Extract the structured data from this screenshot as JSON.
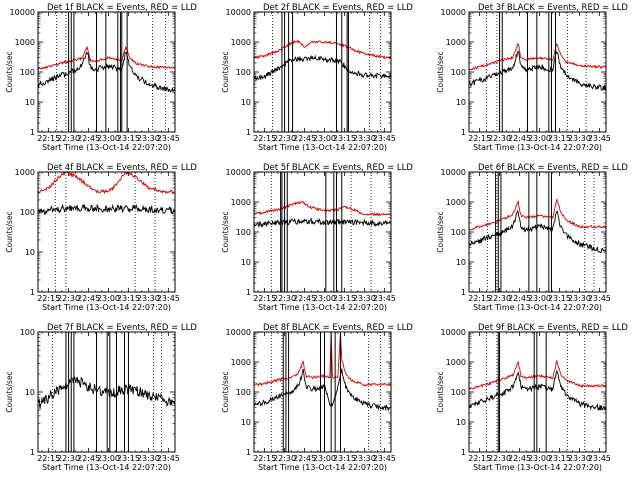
{
  "figure": {
    "background": "#ffffff",
    "colors": {
      "events": "#000000",
      "lld": "#e00000",
      "markers": "#000000"
    }
  },
  "chart_data": [
    {
      "id": "det1f",
      "type": "line",
      "title": "Det 1f BLACK = Events, RED = LLD",
      "xlabel": "Start Time (13-Oct-14 22:07:20)",
      "ylabel": "Counts/sec",
      "yscale": "log",
      "ylim": [
        1,
        10000
      ],
      "yticks": [
        "1",
        "10",
        "100",
        "1000",
        "10000"
      ],
      "xlim": [
        "22:07",
        "23:50"
      ],
      "xticks": [
        "22:15",
        "22:30",
        "22:45",
        "23:00",
        "23:15",
        "23:30",
        "23:45"
      ],
      "grid": false,
      "legend": "none",
      "series": [
        {
          "name": "LLD",
          "color": "#e00000",
          "x": [
            "22:07",
            "22:15",
            "22:25",
            "22:35",
            "22:40",
            "22:44",
            "22:46",
            "22:50",
            "23:00",
            "23:10",
            "23:13",
            "23:16",
            "23:20",
            "23:30",
            "23:45"
          ],
          "values": [
            130,
            150,
            200,
            260,
            280,
            700,
            250,
            230,
            300,
            240,
            700,
            300,
            200,
            150,
            140
          ]
        },
        {
          "name": "Events",
          "color": "#000000",
          "x": [
            "22:07",
            "22:15",
            "22:25",
            "22:35",
            "22:40",
            "22:44",
            "22:46",
            "22:50",
            "23:00",
            "23:10",
            "23:13",
            "23:16",
            "23:20",
            "23:30",
            "23:45"
          ],
          "values": [
            40,
            50,
            80,
            110,
            160,
            500,
            150,
            120,
            160,
            120,
            500,
            150,
            80,
            40,
            25
          ]
        }
      ],
      "markers": {
        "solid": [
          "22:30",
          "22:32",
          "22:34",
          "22:51",
          "22:58",
          "23:07",
          "23:09",
          "23:10",
          "23:14"
        ],
        "dotted": [
          "22:21",
          "22:28",
          "23:33",
          "23:43"
        ]
      }
    },
    {
      "id": "det2f",
      "type": "line",
      "title": "Det 2f BLACK = Events, RED = LLD",
      "xlabel": "Start Time (13-Oct-14 22:07:20)",
      "ylabel": "Counts/sec",
      "yscale": "log",
      "ylim": [
        1,
        10000
      ],
      "yticks": [
        "1",
        "10",
        "100",
        "1000",
        "10000"
      ],
      "xlim": [
        "22:07",
        "23:50"
      ],
      "xticks": [
        "22:15",
        "22:30",
        "22:45",
        "23:00",
        "23:15",
        "23:30",
        "23:45"
      ],
      "grid": false,
      "legend": "none",
      "series": [
        {
          "name": "LLD",
          "color": "#e00000",
          "x": [
            "22:07",
            "22:15",
            "22:25",
            "22:35",
            "22:40",
            "22:45",
            "22:50",
            "23:00",
            "23:10",
            "23:20",
            "23:30",
            "23:45"
          ],
          "values": [
            300,
            350,
            500,
            900,
            1100,
            700,
            1000,
            1000,
            900,
            600,
            400,
            300
          ]
        },
        {
          "name": "Events",
          "color": "#000000",
          "x": [
            "22:07",
            "22:15",
            "22:25",
            "22:35",
            "22:40",
            "22:45",
            "22:50",
            "23:00",
            "23:10",
            "23:20",
            "23:30",
            "23:45"
          ],
          "values": [
            60,
            70,
            130,
            250,
            280,
            260,
            280,
            270,
            250,
            100,
            80,
            70
          ]
        }
      ],
      "markers": {
        "solid": [
          "22:28",
          "22:30",
          "22:33",
          "22:36",
          "23:09",
          "23:13",
          "23:17",
          "23:18"
        ],
        "dotted": [
          "22:21",
          "23:34",
          "23:42"
        ]
      }
    },
    {
      "id": "det3f",
      "type": "line",
      "title": "Det 3f BLACK = Events, RED = LLD",
      "xlabel": "Start Time (13-Oct-14 22:07:20)",
      "ylabel": "Counts/sec",
      "yscale": "log",
      "ylim": [
        1,
        10000
      ],
      "yticks": [
        "1",
        "10",
        "100",
        "1000",
        "10000"
      ],
      "xlim": [
        "22:07",
        "23:50"
      ],
      "xticks": [
        "22:15",
        "22:30",
        "22:45",
        "23:00",
        "23:15",
        "23:30",
        "23:45"
      ],
      "grid": false,
      "legend": "none",
      "series": [
        {
          "name": "LLD",
          "color": "#e00000",
          "x": [
            "22:07",
            "22:15",
            "22:25",
            "22:35",
            "22:40",
            "22:44",
            "22:46",
            "22:50",
            "23:00",
            "23:10",
            "23:13",
            "23:16",
            "23:20",
            "23:30",
            "23:45"
          ],
          "values": [
            120,
            150,
            200,
            270,
            300,
            900,
            300,
            260,
            300,
            250,
            900,
            350,
            220,
            160,
            150
          ]
        },
        {
          "name": "Events",
          "color": "#000000",
          "x": [
            "22:07",
            "22:15",
            "22:25",
            "22:35",
            "22:40",
            "22:44",
            "22:46",
            "22:50",
            "23:00",
            "23:10",
            "23:13",
            "23:16",
            "23:20",
            "23:30",
            "23:45"
          ],
          "values": [
            40,
            50,
            80,
            110,
            150,
            500,
            150,
            120,
            150,
            120,
            500,
            150,
            80,
            40,
            30
          ]
        }
      ],
      "markers": {
        "solid": [
          "22:30",
          "22:32",
          "22:51",
          "22:58",
          "23:07",
          "23:09",
          "23:12"
        ],
        "dotted": [
          "22:20",
          "22:28",
          "23:21",
          "23:35"
        ]
      }
    },
    {
      "id": "det4f",
      "type": "line",
      "title": "Det 4f BLACK = Events, RED = LLD",
      "xlabel": "Start Time (13-Oct-14 22:07:20)",
      "ylabel": "Counts/sec",
      "yscale": "log",
      "ylim": [
        1,
        1000
      ],
      "yticks": [
        "1",
        "10",
        "100",
        "1000"
      ],
      "xlim": [
        "22:07",
        "23:50"
      ],
      "xticks": [
        "22:15",
        "22:30",
        "22:45",
        "23:00",
        "23:15",
        "23:30",
        "23:45"
      ],
      "grid": false,
      "legend": "none",
      "series": [
        {
          "name": "LLD",
          "color": "#e00000",
          "x": [
            "22:07",
            "22:15",
            "22:22",
            "22:28",
            "22:35",
            "22:43",
            "22:50",
            "23:00",
            "23:05",
            "23:12",
            "23:15",
            "23:23",
            "23:30",
            "23:40",
            "23:45"
          ],
          "values": [
            300,
            400,
            700,
            1000,
            800,
            500,
            330,
            320,
            450,
            900,
            1000,
            650,
            400,
            330,
            320
          ]
        },
        {
          "name": "Events",
          "color": "#000000",
          "x": [
            "22:07",
            "22:15",
            "22:25",
            "22:35",
            "22:45",
            "22:55",
            "23:05",
            "23:15",
            "23:25",
            "23:35",
            "23:45"
          ],
          "values": [
            100,
            110,
            120,
            130,
            125,
            120,
            120,
            125,
            120,
            115,
            110
          ]
        }
      ],
      "markers": {
        "solid": [],
        "dotted": [
          "22:20",
          "22:28",
          "23:20",
          "23:35"
        ]
      }
    },
    {
      "id": "det5f",
      "type": "line",
      "title": "Det 5f BLACK = Events, RED = LLD",
      "xlabel": "Start Time (13-Oct-14 22:07:20)",
      "ylabel": "Counts/sec",
      "yscale": "log",
      "ylim": [
        1,
        10000
      ],
      "yticks": [
        "1",
        "10",
        "100",
        "1000",
        "10000"
      ],
      "xlim": [
        "22:07",
        "23:50"
      ],
      "xticks": [
        "22:15",
        "22:30",
        "22:45",
        "23:00",
        "23:15",
        "23:30",
        "23:45"
      ],
      "grid": false,
      "legend": "none",
      "series": [
        {
          "name": "LLD",
          "color": "#e00000",
          "x": [
            "22:07",
            "22:15",
            "22:25",
            "22:35",
            "22:43",
            "22:50",
            "23:00",
            "23:10",
            "23:15",
            "23:20",
            "23:30",
            "23:45"
          ],
          "values": [
            400,
            450,
            550,
            800,
            1000,
            650,
            500,
            550,
            700,
            600,
            400,
            380
          ]
        },
        {
          "name": "Events",
          "color": "#000000",
          "x": [
            "22:07",
            "22:15",
            "22:25",
            "22:35",
            "22:45",
            "22:55",
            "23:05",
            "23:15",
            "23:25",
            "23:35",
            "23:45"
          ],
          "values": [
            180,
            190,
            200,
            220,
            230,
            220,
            210,
            220,
            210,
            200,
            190
          ]
        }
      ],
      "markers": {
        "solid": [
          "22:27",
          "22:28",
          "22:30",
          "22:32",
          "23:01",
          "23:07",
          "23:09",
          "23:13"
        ],
        "dotted": [
          "22:20",
          "22:28",
          "23:20",
          "23:35"
        ]
      }
    },
    {
      "id": "det6f",
      "type": "line",
      "title": "Det 6f BLACK = Events, RED = LLD",
      "xlabel": "Start Time (13-Oct-14 22:07:20)",
      "ylabel": "Counts/sec",
      "yscale": "log",
      "ylim": [
        1,
        10000
      ],
      "yticks": [
        "1",
        "10",
        "100",
        "1000",
        "10000"
      ],
      "xlim": [
        "22:07",
        "23:50"
      ],
      "xticks": [
        "22:15",
        "22:30",
        "22:45",
        "23:00",
        "23:15",
        "23:30",
        "23:45"
      ],
      "grid": false,
      "legend": "none",
      "series": [
        {
          "name": "LLD",
          "color": "#e00000",
          "x": [
            "22:07",
            "22:15",
            "22:25",
            "22:35",
            "22:40",
            "22:44",
            "22:46",
            "22:50",
            "23:00",
            "23:10",
            "23:13",
            "23:16",
            "23:20",
            "23:30",
            "23:45"
          ],
          "values": [
            120,
            150,
            200,
            300,
            400,
            1000,
            350,
            300,
            350,
            300,
            1200,
            450,
            250,
            150,
            150
          ]
        },
        {
          "name": "Events",
          "color": "#000000",
          "x": [
            "22:07",
            "22:15",
            "22:25",
            "22:35",
            "22:40",
            "22:44",
            "22:46",
            "22:50",
            "23:00",
            "23:10",
            "23:13",
            "23:16",
            "23:20",
            "23:30",
            "23:45"
          ],
          "values": [
            40,
            50,
            80,
            110,
            160,
            500,
            150,
            120,
            150,
            120,
            500,
            150,
            80,
            40,
            25
          ]
        }
      ],
      "markers": {
        "solid": [
          "22:27",
          "22:29",
          "22:31",
          "22:52",
          "22:58",
          "23:07",
          "23:09"
        ],
        "dotted": [
          "22:21",
          "22:28",
          "23:34",
          "23:41"
        ]
      }
    },
    {
      "id": "det7f",
      "type": "line",
      "title": "Det 7f BLACK = Events, RED = LLD",
      "xlabel": "Start Time (13-Oct-14 22:07:20)",
      "ylabel": "Counts/sec",
      "yscale": "log",
      "ylim": [
        1,
        100
      ],
      "yticks": [
        "1",
        "10",
        "100"
      ],
      "xlim": [
        "22:07",
        "23:50"
      ],
      "xticks": [
        "22:15",
        "22:30",
        "22:45",
        "23:00",
        "23:15",
        "23:30",
        "23:45"
      ],
      "grid": false,
      "legend": "none",
      "series": [
        {
          "name": "Events",
          "color": "#000000",
          "x": [
            "22:07",
            "22:15",
            "22:25",
            "22:35",
            "22:45",
            "22:55",
            "23:05",
            "23:15",
            "23:25",
            "23:35",
            "23:45"
          ],
          "values": [
            6,
            8,
            12,
            16,
            12,
            10,
            10,
            11,
            10,
            8,
            7
          ]
        }
      ],
      "markers": {
        "solid": [
          "22:28",
          "22:30",
          "22:32",
          "22:34",
          "22:51",
          "22:59",
          "23:01",
          "23:06",
          "23:12",
          "23:15"
        ],
        "dotted": [
          "22:18",
          "22:28",
          "23:34",
          "23:40"
        ]
      }
    },
    {
      "id": "det8f",
      "type": "line",
      "title": "Det 8f BLACK = Events, RED = LLD",
      "xlabel": "Start Time (13-Oct-14 22:07:20)",
      "ylabel": "Counts/sec",
      "yscale": "log",
      "ylim": [
        1,
        10000
      ],
      "yticks": [
        "1",
        "10",
        "100",
        "1000",
        "10000"
      ],
      "xlim": [
        "22:07",
        "23:50"
      ],
      "xticks": [
        "22:15",
        "22:30",
        "22:45",
        "23:00",
        "23:15",
        "23:30",
        "23:45"
      ],
      "grid": false,
      "legend": "none",
      "series": [
        {
          "name": "LLD",
          "color": "#e00000",
          "x": [
            "22:07",
            "22:15",
            "22:25",
            "22:35",
            "22:40",
            "22:44",
            "22:46",
            "22:50",
            "23:00",
            "23:04",
            "23:05",
            "23:06",
            "23:10",
            "23:12",
            "23:13",
            "23:16",
            "23:20",
            "23:30",
            "23:45"
          ],
          "values": [
            170,
            190,
            250,
            300,
            400,
            1000,
            350,
            300,
            350,
            300,
            10000,
            300,
            300,
            10000,
            1200,
            400,
            250,
            170,
            180
          ]
        },
        {
          "name": "Events",
          "color": "#000000",
          "x": [
            "22:07",
            "22:15",
            "22:25",
            "22:35",
            "22:40",
            "22:44",
            "22:46",
            "22:50",
            "23:00",
            "23:05",
            "23:10",
            "23:13",
            "23:16",
            "23:20",
            "23:30",
            "23:45"
          ],
          "values": [
            40,
            45,
            70,
            100,
            150,
            500,
            150,
            120,
            150,
            30,
            130,
            500,
            150,
            80,
            40,
            30
          ]
        }
      ],
      "markers": {
        "solid": [
          "22:29",
          "22:31",
          "22:33",
          "22:57",
          "23:00",
          "23:05",
          "23:08",
          "23:12"
        ],
        "dotted": [
          "22:20",
          "22:28",
          "23:33",
          "23:42"
        ]
      }
    },
    {
      "id": "det9f",
      "type": "line",
      "title": "Det 9f BLACK = Events, RED = LLD",
      "xlabel": "Start Time (13-Oct-14 22:07:20)",
      "ylabel": "Counts/sec",
      "yscale": "log",
      "ylim": [
        1,
        10000
      ],
      "yticks": [
        "1",
        "10",
        "100",
        "1000",
        "10000"
      ],
      "xlim": [
        "22:07",
        "23:50"
      ],
      "xticks": [
        "22:15",
        "22:30",
        "22:45",
        "23:00",
        "23:15",
        "23:30",
        "23:45"
      ],
      "grid": false,
      "legend": "none",
      "series": [
        {
          "name": "LLD",
          "color": "#e00000",
          "x": [
            "22:07",
            "22:15",
            "22:25",
            "22:35",
            "22:40",
            "22:44",
            "22:46",
            "22:50",
            "23:00",
            "23:10",
            "23:13",
            "23:16",
            "23:20",
            "23:30",
            "23:45"
          ],
          "values": [
            130,
            150,
            210,
            300,
            360,
            1000,
            350,
            300,
            350,
            300,
            1100,
            400,
            250,
            160,
            160
          ]
        },
        {
          "name": "Events",
          "color": "#000000",
          "x": [
            "22:07",
            "22:15",
            "22:25",
            "22:35",
            "22:40",
            "22:44",
            "22:46",
            "22:50",
            "23:00",
            "23:10",
            "23:13",
            "23:16",
            "23:20",
            "23:30",
            "23:45"
          ],
          "values": [
            35,
            45,
            70,
            100,
            150,
            500,
            150,
            120,
            150,
            120,
            500,
            150,
            80,
            40,
            30
          ]
        }
      ],
      "markers": {
        "solid": [
          "22:29",
          "22:30",
          "22:56",
          "22:58",
          "23:05"
        ],
        "dotted": [
          "22:20",
          "22:28",
          "23:21",
          "23:34"
        ]
      }
    }
  ]
}
